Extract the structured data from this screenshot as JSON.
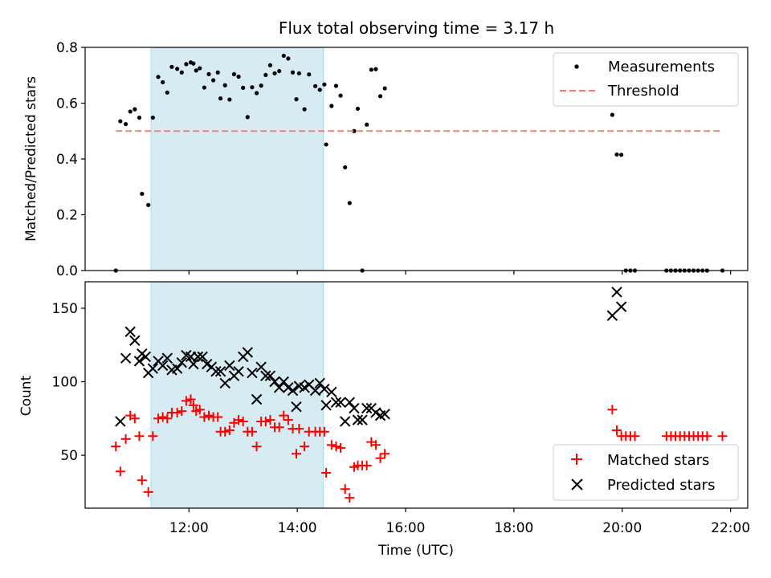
{
  "figure": {
    "title": "Flux total observing time = 3.17 h",
    "xlabel": "Time (UTC)",
    "x_ticks": [
      "12:00",
      "14:00",
      "16:00",
      "18:00",
      "20:00",
      "22:00"
    ],
    "highlight_window": {
      "start": "11:18",
      "end": "14:29",
      "color": "#add8e6"
    }
  },
  "chart_data": [
    {
      "type": "scatter",
      "ylabel": "Matched/Predicted stars",
      "ylim": [
        0,
        0.8
      ],
      "y_ticks": [
        "0.0",
        "0.2",
        "0.4",
        "0.6",
        "0.8"
      ],
      "xlim": [
        "10:05",
        "22:19"
      ],
      "legend_position": "upper-right",
      "series": [
        {
          "name": "Measurements",
          "marker": "dot",
          "color": "#000000",
          "points": [
            [
              "10:39",
              0.0
            ],
            [
              "10:44",
              0.535
            ],
            [
              "10:50",
              0.525
            ],
            [
              "10:55",
              0.57
            ],
            [
              "11:00",
              0.578
            ],
            [
              "11:05",
              0.548
            ],
            [
              "11:08",
              0.275
            ],
            [
              "11:15",
              0.235
            ],
            [
              "11:20",
              0.548
            ],
            [
              "11:26",
              0.694
            ],
            [
              "11:31",
              0.675
            ],
            [
              "11:36",
              0.638
            ],
            [
              "11:41",
              0.73
            ],
            [
              "11:47",
              0.723
            ],
            [
              "11:52",
              0.71
            ],
            [
              "11:57",
              0.74
            ],
            [
              "12:02",
              0.746
            ],
            [
              "12:05",
              0.742
            ],
            [
              "12:08",
              0.717
            ],
            [
              "12:12",
              0.725
            ],
            [
              "12:17",
              0.656
            ],
            [
              "12:22",
              0.704
            ],
            [
              "12:27",
              0.682
            ],
            [
              "12:32",
              0.71
            ],
            [
              "12:35",
              0.617
            ],
            [
              "12:40",
              0.664
            ],
            [
              "12:45",
              0.613
            ],
            [
              "12:50",
              0.704
            ],
            [
              "12:55",
              0.695
            ],
            [
              "13:00",
              0.655
            ],
            [
              "13:05",
              0.55
            ],
            [
              "13:10",
              0.657
            ],
            [
              "13:15",
              0.636
            ],
            [
              "13:20",
              0.663
            ],
            [
              "13:25",
              0.701
            ],
            [
              "13:30",
              0.736
            ],
            [
              "13:35",
              0.707
            ],
            [
              "13:40",
              0.715
            ],
            [
              "13:45",
              0.77
            ],
            [
              "13:50",
              0.76
            ],
            [
              "13:55",
              0.71
            ],
            [
              "13:59",
              0.614
            ],
            [
              "14:02",
              0.707
            ],
            [
              "14:08",
              0.578
            ],
            [
              "14:13",
              0.703
            ],
            [
              "14:20",
              0.661
            ],
            [
              "14:25",
              0.648
            ],
            [
              "14:30",
              0.667
            ],
            [
              "14:32",
              0.452
            ],
            [
              "14:38",
              0.59
            ],
            [
              "14:43",
              0.662
            ],
            [
              "14:48",
              0.627
            ],
            [
              "14:53",
              0.37
            ],
            [
              "14:58",
              0.242
            ],
            [
              "15:03",
              0.5
            ],
            [
              "15:07",
              0.58
            ],
            [
              "15:12",
              0.0
            ],
            [
              "15:17",
              0.523
            ],
            [
              "15:22",
              0.72
            ],
            [
              "15:27",
              0.722
            ],
            [
              "15:32",
              0.625
            ],
            [
              "15:37",
              0.653
            ],
            [
              "19:49",
              0.558
            ],
            [
              "19:54",
              0.416
            ],
            [
              "19:59",
              0.415
            ],
            [
              "20:04",
              0.0
            ],
            [
              "20:09",
              0.0
            ],
            [
              "20:14",
              0.0
            ],
            [
              "20:49",
              0.0
            ],
            [
              "20:54",
              0.0
            ],
            [
              "20:59",
              0.0
            ],
            [
              "21:04",
              0.0
            ],
            [
              "21:09",
              0.0
            ],
            [
              "21:14",
              0.0
            ],
            [
              "21:19",
              0.0
            ],
            [
              "21:24",
              0.0
            ],
            [
              "21:29",
              0.0
            ],
            [
              "21:34",
              0.0
            ],
            [
              "21:51",
              0.0
            ]
          ]
        },
        {
          "name": "Threshold",
          "style": "dashed",
          "color": "#f08080",
          "points": [
            [
              "10:39",
              0.5
            ],
            [
              "21:51",
              0.5
            ]
          ]
        }
      ]
    },
    {
      "type": "scatter",
      "ylabel": "Count",
      "ylim": [
        14,
        168
      ],
      "y_ticks": [
        "50",
        "100",
        "150"
      ],
      "xlim": [
        "10:05",
        "22:19"
      ],
      "legend_position": "lower-right",
      "series": [
        {
          "name": "Matched stars",
          "marker": "plus",
          "color": "#ff0000",
          "points": [
            [
              "10:39",
              56
            ],
            [
              "10:44",
              39
            ],
            [
              "10:50",
              61
            ],
            [
              "10:55",
              77
            ],
            [
              "11:00",
              75
            ],
            [
              "11:05",
              63
            ],
            [
              "11:08",
              33
            ],
            [
              "11:15",
              25
            ],
            [
              "11:20",
              63
            ],
            [
              "11:26",
              75
            ],
            [
              "11:31",
              76
            ],
            [
              "11:36",
              75
            ],
            [
              "11:41",
              79
            ],
            [
              "11:47",
              79
            ],
            [
              "11:52",
              80
            ],
            [
              "11:57",
              87
            ],
            [
              "12:02",
              88
            ],
            [
              "12:05",
              84
            ],
            [
              "12:08",
              80
            ],
            [
              "12:12",
              81
            ],
            [
              "12:17",
              76
            ],
            [
              "12:22",
              77
            ],
            [
              "12:27",
              76
            ],
            [
              "12:32",
              76
            ],
            [
              "12:35",
              66
            ],
            [
              "12:40",
              66
            ],
            [
              "12:45",
              67
            ],
            [
              "12:50",
              72
            ],
            [
              "12:55",
              74
            ],
            [
              "13:00",
              73
            ],
            [
              "13:05",
              66
            ],
            [
              "13:10",
              66
            ],
            [
              "13:15",
              56
            ],
            [
              "13:20",
              73
            ],
            [
              "13:25",
              73
            ],
            [
              "13:30",
              74
            ],
            [
              "13:35",
              69
            ],
            [
              "13:40",
              69
            ],
            [
              "13:45",
              77
            ],
            [
              "13:50",
              74
            ],
            [
              "13:55",
              68
            ],
            [
              "13:59",
              51
            ],
            [
              "14:02",
              68
            ],
            [
              "14:08",
              56
            ],
            [
              "14:13",
              66
            ],
            [
              "14:20",
              66
            ],
            [
              "14:25",
              66
            ],
            [
              "14:30",
              66
            ],
            [
              "14:32",
              38
            ],
            [
              "14:38",
              57
            ],
            [
              "14:43",
              56
            ],
            [
              "14:48",
              55
            ],
            [
              "14:53",
              27
            ],
            [
              "14:58",
              21
            ],
            [
              "15:03",
              42
            ],
            [
              "15:07",
              43
            ],
            [
              "15:12",
              43
            ],
            [
              "15:17",
              43
            ],
            [
              "15:22",
              59
            ],
            [
              "15:27",
              57
            ],
            [
              "15:32",
              48
            ],
            [
              "15:37",
              51
            ],
            [
              "19:49",
              81
            ],
            [
              "19:54",
              67
            ],
            [
              "19:59",
              63
            ],
            [
              "20:04",
              63
            ],
            [
              "20:09",
              63
            ],
            [
              "20:14",
              63
            ],
            [
              "20:49",
              63
            ],
            [
              "20:54",
              63
            ],
            [
              "20:59",
              63
            ],
            [
              "21:04",
              63
            ],
            [
              "21:09",
              63
            ],
            [
              "21:14",
              63
            ],
            [
              "21:19",
              63
            ],
            [
              "21:24",
              63
            ],
            [
              "21:29",
              63
            ],
            [
              "21:34",
              63
            ],
            [
              "21:51",
              63
            ]
          ]
        },
        {
          "name": "Predicted stars",
          "marker": "x",
          "color": "#000000",
          "points": [
            [
              "10:44",
              73
            ],
            [
              "10:50",
              116
            ],
            [
              "10:55",
              134
            ],
            [
              "11:00",
              128
            ],
            [
              "11:05",
              114
            ],
            [
              "11:08",
              119
            ],
            [
              "11:12",
              117
            ],
            [
              "11:15",
              106
            ],
            [
              "11:20",
              109
            ],
            [
              "11:26",
              114
            ],
            [
              "11:31",
              111
            ],
            [
              "11:36",
              116
            ],
            [
              "11:41",
              108
            ],
            [
              "11:47",
              109
            ],
            [
              "11:52",
              113
            ],
            [
              "11:57",
              118
            ],
            [
              "12:02",
              117
            ],
            [
              "12:05",
              112
            ],
            [
              "12:10",
              117
            ],
            [
              "12:15",
              117
            ],
            [
              "12:20",
              112
            ],
            [
              "12:25",
              110
            ],
            [
              "12:30",
              107
            ],
            [
              "12:35",
              107
            ],
            [
              "12:40",
              99
            ],
            [
              "12:45",
              111
            ],
            [
              "12:50",
              104
            ],
            [
              "12:55",
              107
            ],
            [
              "13:00",
              117
            ],
            [
              "13:05",
              120
            ],
            [
              "13:10",
              106
            ],
            [
              "13:15",
              88
            ],
            [
              "13:20",
              110
            ],
            [
              "13:25",
              104
            ],
            [
              "13:30",
              104
            ],
            [
              "13:35",
              100
            ],
            [
              "13:40",
              96
            ],
            [
              "13:45",
              100
            ],
            [
              "13:50",
              96
            ],
            [
              "13:55",
              94
            ],
            [
              "13:59",
              83
            ],
            [
              "14:02",
              97
            ],
            [
              "14:08",
              96
            ],
            [
              "14:13",
              98
            ],
            [
              "14:20",
              94
            ],
            [
              "14:25",
              99
            ],
            [
              "14:30",
              95
            ],
            [
              "14:32",
              84
            ],
            [
              "14:38",
              93
            ],
            [
              "14:43",
              86
            ],
            [
              "14:48",
              86
            ],
            [
              "14:53",
              73
            ],
            [
              "14:58",
              86
            ],
            [
              "15:03",
              82
            ],
            [
              "15:07",
              74
            ],
            [
              "15:12",
              74
            ],
            [
              "15:17",
              82
            ],
            [
              "15:22",
              82
            ],
            [
              "15:27",
              79
            ],
            [
              "15:32",
              77
            ],
            [
              "15:37",
              78
            ],
            [
              "19:49",
              145
            ],
            [
              "19:54",
              161
            ],
            [
              "19:59",
              151
            ]
          ]
        }
      ]
    }
  ]
}
